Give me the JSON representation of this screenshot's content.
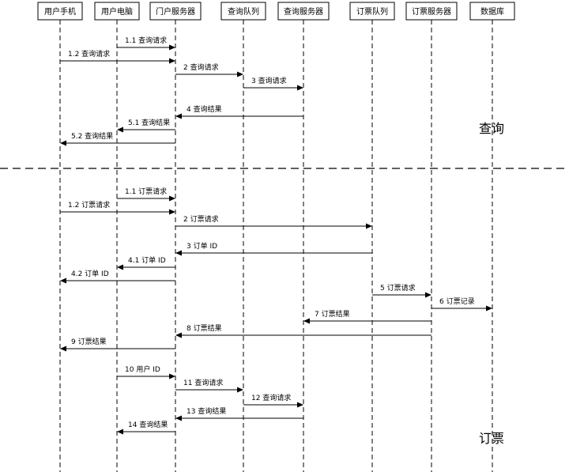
{
  "actors": [
    {
      "id": "phone",
      "label": "用户手机",
      "icon": "mobile-phone"
    },
    {
      "id": "pc",
      "label": "用户电脑",
      "icon": "desktop-computer"
    },
    {
      "id": "portal",
      "label": "门户服务器",
      "icon": "server"
    },
    {
      "id": "query_queue",
      "label": "查询队列",
      "icon": "queue"
    },
    {
      "id": "query_server",
      "label": "查询服务器",
      "icon": "server"
    },
    {
      "id": "order_queue",
      "label": "订票队列",
      "icon": "queue"
    },
    {
      "id": "order_server",
      "label": "订票服务器",
      "icon": "server"
    },
    {
      "id": "database",
      "label": "数据库",
      "icon": "database"
    }
  ],
  "phases": {
    "query": "查询",
    "booking": "订票"
  },
  "messages": [
    {
      "from": "pc",
      "to": "portal",
      "label": "1.1 查询请求"
    },
    {
      "from": "phone",
      "to": "portal",
      "label": "1.2 查询请求"
    },
    {
      "from": "portal",
      "to": "query_queue",
      "label": "2 查询请求"
    },
    {
      "from": "query_queue",
      "to": "query_server",
      "label": "3 查询请求"
    },
    {
      "from": "query_server",
      "to": "portal",
      "label": "4 查询结果"
    },
    {
      "from": "portal",
      "to": "pc",
      "label": "5.1 查询结果"
    },
    {
      "from": "portal",
      "to": "phone",
      "label": "5.2 查询结果"
    },
    {
      "from": "pc",
      "to": "portal",
      "label": "1.1 订票请求"
    },
    {
      "from": "phone",
      "to": "portal",
      "label": "1.2 订票请求"
    },
    {
      "from": "portal",
      "to": "order_queue",
      "label": "2 订票请求"
    },
    {
      "from": "order_queue",
      "to": "portal",
      "label": "3 订单 ID"
    },
    {
      "from": "portal",
      "to": "pc",
      "label": "4.1 订单 ID"
    },
    {
      "from": "portal",
      "to": "phone",
      "label": "4.2 订单 ID"
    },
    {
      "from": "order_queue",
      "to": "order_server",
      "label": "5 订票请求"
    },
    {
      "from": "order_server",
      "to": "database",
      "label": "6 订票记录"
    },
    {
      "from": "order_server",
      "to": "query_server",
      "label": "7 订票结果"
    },
    {
      "from": "order_server",
      "to": "portal",
      "label": "8 订票结果"
    },
    {
      "from": "portal",
      "to": "phone",
      "label": "9 订票结果"
    },
    {
      "from": "pc",
      "to": "portal",
      "label": "10 用户 ID"
    },
    {
      "from": "portal",
      "to": "query_queue",
      "label": "11 查询请求"
    },
    {
      "from": "query_queue",
      "to": "query_server",
      "label": "12 查询请求"
    },
    {
      "from": "query_server",
      "to": "portal",
      "label": "13 查询结果"
    },
    {
      "from": "portal",
      "to": "pc",
      "label": "14 查询结果"
    }
  ]
}
